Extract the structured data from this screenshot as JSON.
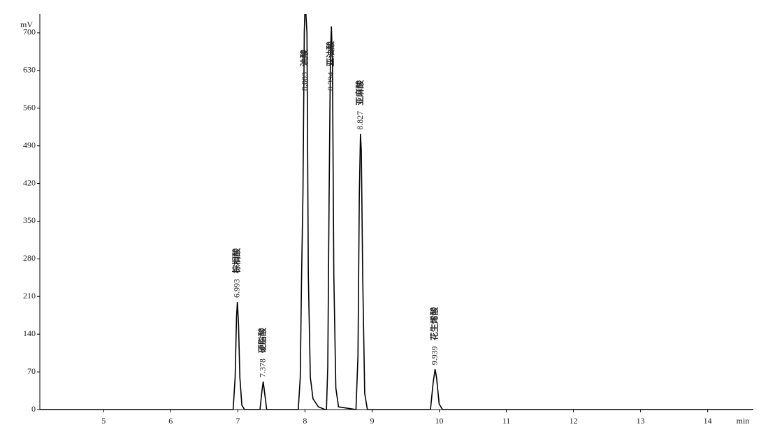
{
  "chart_data": {
    "type": "line",
    "x_label": "min",
    "y_label": "mV",
    "xlim": [
      4.05,
      14.68
    ],
    "ylim": [
      0,
      735
    ],
    "xticks": [
      5,
      6,
      7,
      8,
      9,
      10,
      11,
      12,
      13,
      14
    ],
    "yticks": [
      0,
      70,
      140,
      210,
      280,
      350,
      420,
      490,
      560,
      630,
      700
    ],
    "series": [
      {
        "color": "#000000",
        "x": [
          4.05,
          6.93,
          6.96,
          6.98,
          6.993,
          7.01,
          7.03,
          7.06,
          7.1,
          7.33,
          7.36,
          7.378,
          7.4,
          7.43,
          7.9,
          7.93,
          7.95,
          7.97,
          7.99,
          8.003,
          8.03,
          8.05,
          8.08,
          8.12,
          8.2,
          8.3,
          8.32,
          8.34,
          8.36,
          8.38,
          8.394,
          8.41,
          8.43,
          8.46,
          8.5,
          8.76,
          8.79,
          8.81,
          8.827,
          8.84,
          8.86,
          8.89,
          8.93,
          9.87,
          9.91,
          9.939,
          9.96,
          10.0,
          10.05,
          14.68
        ],
        "values": [
          0,
          0,
          60,
          170,
          200,
          160,
          60,
          8,
          0,
          0,
          35,
          52,
          30,
          0,
          0,
          60,
          250,
          400,
          700,
          760,
          700,
          250,
          60,
          20,
          5,
          0,
          0,
          80,
          400,
          660,
          712,
          640,
          250,
          40,
          5,
          0,
          100,
          400,
          512,
          480,
          250,
          30,
          0,
          0,
          50,
          75,
          60,
          10,
          0,
          0
        ]
      }
    ],
    "annotations": [
      {
        "x": 6.993,
        "name": "棕榈酸"
      },
      {
        "x": 7.378,
        "name": "硬脂酸"
      },
      {
        "x": 8.003,
        "name": "油酸"
      },
      {
        "x": 8.394,
        "name": "亚油酸"
      },
      {
        "x": 8.827,
        "name": "亚麻酸"
      },
      {
        "x": 9.939,
        "name": "花生烯酸"
      }
    ]
  }
}
